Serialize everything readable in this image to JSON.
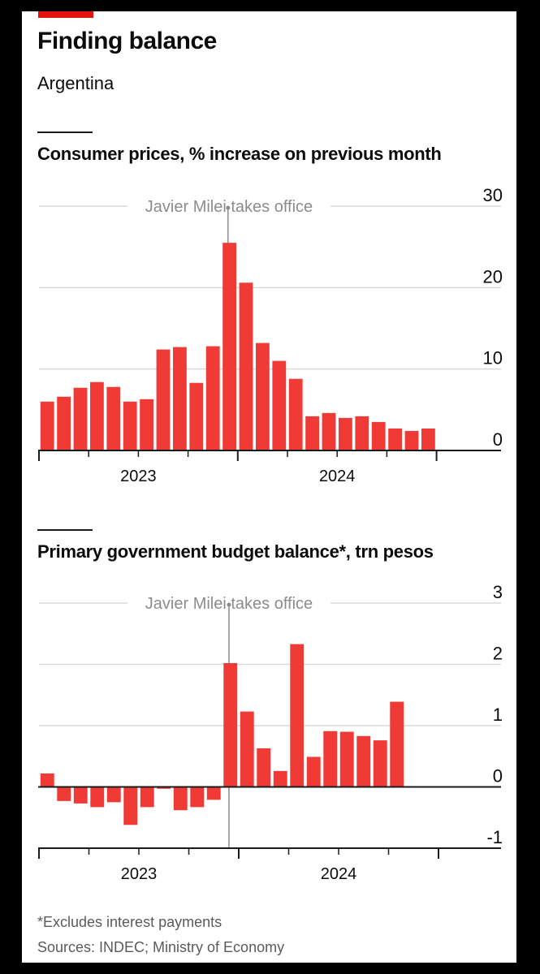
{
  "title": "Finding balance",
  "subtitle": "Argentina",
  "footnote": "*Excludes interest payments",
  "sources": "Sources: INDEC; Ministry of Economy",
  "colors": {
    "bar": "#f03a36",
    "brand": "#e3120b",
    "grid": "#d9d9d9",
    "axis": "#1a1a1a",
    "annotation": "#8c8c8c"
  },
  "chart_data": [
    {
      "type": "bar",
      "title": "Consumer prices, % increase on previous month",
      "annotation": "Javier Milei takes office",
      "annotation_after_index": 11,
      "x_labels": [
        "2023",
        "2024"
      ],
      "x_label_index": [
        6,
        18
      ],
      "ylim": [
        0,
        30
      ],
      "yticks": [
        0,
        10,
        20,
        30
      ],
      "ytick_labels": [
        "0",
        "10",
        "20",
        "30"
      ],
      "values": [
        6.0,
        6.6,
        7.7,
        8.4,
        7.8,
        6.0,
        6.3,
        12.4,
        12.7,
        8.3,
        12.8,
        25.5,
        20.6,
        13.2,
        11.0,
        8.8,
        4.2,
        4.6,
        4.0,
        4.2,
        3.5,
        2.7,
        2.4,
        2.7
      ]
    },
    {
      "type": "bar",
      "title": "Primary government budget balance*, trn pesos",
      "annotation": "Javier Milei takes office",
      "annotation_after_index": 11,
      "x_labels": [
        "2023",
        "2024"
      ],
      "x_label_index": [
        6,
        18
      ],
      "ylim": [
        -1,
        3
      ],
      "yticks": [
        -1,
        0,
        1,
        2,
        3
      ],
      "ytick_labels": [
        "-1",
        "0",
        "1",
        "2",
        "3"
      ],
      "values": [
        0.22,
        -0.23,
        -0.27,
        -0.33,
        -0.25,
        -0.62,
        -0.33,
        -0.03,
        -0.38,
        -0.33,
        -0.21,
        2.02,
        1.23,
        0.63,
        0.26,
        2.33,
        0.49,
        0.91,
        0.9,
        0.83,
        0.76,
        1.39
      ]
    }
  ]
}
